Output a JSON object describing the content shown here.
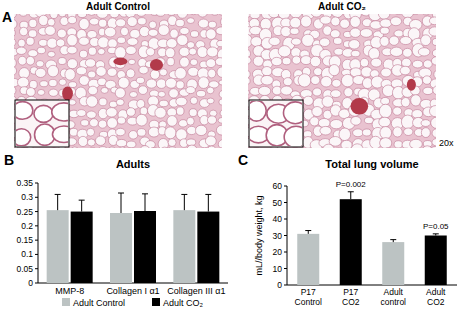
{
  "panel_a": {
    "label": "A",
    "images": [
      {
        "title": "Adult Control"
      },
      {
        "title": "Adult CO₂"
      }
    ],
    "magnification": "20x"
  },
  "chart_data": [
    {
      "type": "bar",
      "title": "Adults",
      "annotations": [
        {
          "text": "B"
        }
      ],
      "categories": [
        "MMP-8",
        "Collagen I α1",
        "Collagen III α1"
      ],
      "series": [
        {
          "name": "Adult Control",
          "color": "#bcc3c3",
          "values": [
            0.255,
            0.245,
            0.255
          ],
          "errors": [
            0.055,
            0.07,
            0.055
          ]
        },
        {
          "name": "Adult CO₂",
          "color": "#000000",
          "values": [
            0.25,
            0.252,
            0.25
          ],
          "errors": [
            0.04,
            0.06,
            0.06
          ]
        }
      ],
      "ylim": [
        0,
        0.35
      ],
      "yticks": [
        0,
        0.05,
        0.1,
        0.15,
        0.2,
        0.25,
        0.3,
        0.35
      ],
      "legend": "bottom"
    },
    {
      "type": "bar",
      "title": "Total lung volume",
      "y_label": "mL//body weight, kg",
      "annotations": [
        {
          "text": "C"
        },
        {
          "text": "P=0.002",
          "x": "P17 CO2"
        },
        {
          "text": "P=0.05",
          "x": "Adult CO2"
        }
      ],
      "categories": [
        "P17 Control",
        "P17 CO2",
        "Adult control",
        "Adult CO2"
      ],
      "values": [
        31,
        52,
        26,
        30
      ],
      "errors": [
        2,
        4.5,
        1.5,
        1
      ],
      "colors": [
        "#bcc3c3",
        "#000000",
        "#bcc3c3",
        "#000000"
      ],
      "ylim": [
        0,
        60
      ],
      "yticks": [
        0,
        10,
        20,
        30,
        40,
        50,
        60
      ]
    }
  ]
}
